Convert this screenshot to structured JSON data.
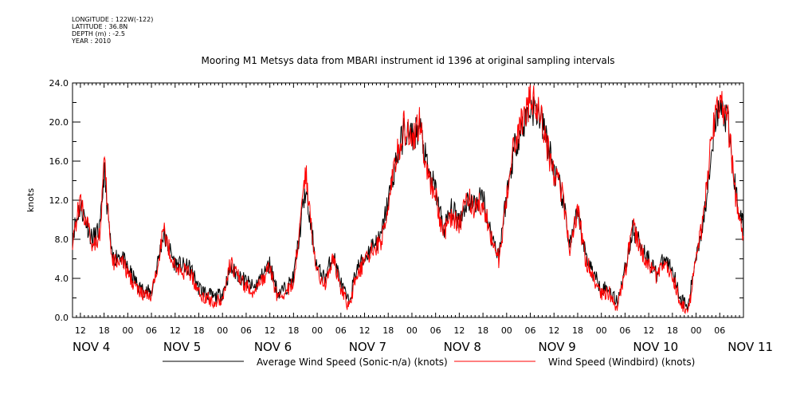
{
  "meta": {
    "longitude": "LONGITUDE : 122W(-122)",
    "latitude": "LATITUDE : 36.8N",
    "depth": "DEPTH (m) : -2.5",
    "year": "YEAR : 2010"
  },
  "chart_data": {
    "type": "line",
    "title": "Mooring M1 Metsys data from MBARI instrument id 1396 at original sampling intervals",
    "ylabel": "knots",
    "xlabel": "",
    "ylim": [
      0,
      24
    ],
    "y_ticks": [
      "0.0",
      "4.0",
      "8.0",
      "12.0",
      "16.0",
      "20.0",
      "24.0"
    ],
    "x_range_hours": [
      10,
      180
    ],
    "hour_ticks": [
      "12",
      "18",
      "00",
      "06",
      "12",
      "18",
      "00",
      "06",
      "12",
      "18",
      "00",
      "06",
      "12",
      "18",
      "00",
      "06",
      "12",
      "18",
      "00",
      "06",
      "12",
      "18",
      "00",
      "06",
      "12",
      "18",
      "00",
      "06"
    ],
    "date_labels": [
      "NOV  4",
      "NOV  5",
      "NOV  6",
      "NOV  7",
      "NOV  8",
      "NOV  9",
      "NOV 10",
      "NOV 11"
    ],
    "grid": false,
    "legend_position": "bottom",
    "x_key_hours": [
      10,
      12,
      15,
      17,
      18,
      20,
      22,
      24,
      27,
      30,
      33,
      36,
      40,
      42,
      46,
      48,
      50,
      53,
      56,
      60,
      62,
      64,
      66,
      69,
      72,
      74,
      76,
      78,
      80,
      82,
      84,
      86,
      88,
      90,
      92,
      94,
      96,
      98,
      100,
      102,
      104,
      106,
      108,
      110,
      112,
      114,
      116,
      118,
      120,
      122,
      124,
      126,
      128,
      130,
      132,
      134,
      136,
      138,
      140,
      142,
      144,
      146,
      148,
      150,
      152,
      154,
      156,
      158,
      160,
      162,
      164,
      166,
      168,
      170,
      172,
      174,
      176,
      178,
      180
    ],
    "series": [
      {
        "name": "Average Wind Speed (Sonic-n/a) (knots)",
        "color": "#000000",
        "values": [
          8.5,
          11.5,
          8.0,
          9.0,
          15.0,
          6.0,
          6.5,
          5.0,
          3.0,
          2.5,
          8.5,
          5.5,
          5.0,
          3.0,
          2.0,
          2.5,
          5.0,
          4.0,
          3.0,
          5.5,
          2.5,
          3.0,
          4.0,
          13.0,
          5.0,
          4.0,
          6.5,
          3.5,
          1.5,
          5.0,
          6.0,
          7.5,
          8.0,
          12.0,
          16.0,
          19.0,
          18.5,
          19.5,
          15.0,
          13.0,
          9.0,
          11.0,
          10.0,
          12.0,
          11.5,
          12.5,
          8.5,
          6.5,
          12.5,
          17.5,
          19.5,
          21.5,
          21.0,
          18.5,
          15.0,
          12.5,
          7.5,
          10.5,
          6.5,
          4.5,
          3.0,
          3.0,
          1.5,
          5.0,
          9.0,
          7.5,
          6.0,
          4.5,
          6.0,
          5.0,
          2.0,
          1.0,
          6.5,
          10.0,
          18.0,
          21.5,
          20.0,
          13.0,
          9.0
        ]
      },
      {
        "name": "Wind Speed (Windbird) (knots)",
        "color": "#ff0000",
        "values": [
          8.0,
          12.0,
          7.5,
          8.5,
          16.0,
          5.5,
          6.0,
          4.5,
          2.5,
          2.0,
          9.0,
          5.0,
          4.5,
          2.5,
          1.5,
          2.0,
          5.5,
          3.5,
          2.5,
          5.0,
          2.0,
          2.5,
          3.5,
          15.0,
          4.5,
          3.5,
          6.0,
          3.0,
          1.0,
          4.5,
          5.5,
          7.0,
          7.5,
          11.5,
          16.5,
          19.5,
          18.0,
          20.0,
          14.5,
          12.5,
          8.5,
          10.5,
          9.5,
          12.5,
          11.0,
          12.0,
          8.0,
          6.0,
          12.0,
          18.0,
          20.0,
          22.5,
          21.5,
          18.0,
          14.5,
          13.0,
          7.0,
          11.0,
          6.0,
          4.0,
          2.5,
          2.5,
          1.0,
          4.5,
          9.5,
          7.0,
          5.5,
          4.0,
          5.5,
          4.5,
          1.5,
          0.5,
          6.0,
          10.5,
          18.5,
          22.0,
          20.5,
          12.5,
          8.5
        ]
      }
    ]
  }
}
